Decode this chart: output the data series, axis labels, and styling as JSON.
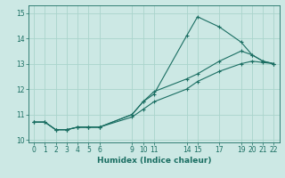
{
  "xlabel": "Humidex (Indice chaleur)",
  "bg_color": "#cce8e4",
  "grid_color": "#aad4cc",
  "line_color": "#1a6e62",
  "xlim": [
    -0.5,
    22.5
  ],
  "ylim": [
    9.9,
    15.3
  ],
  "xticks": [
    0,
    1,
    2,
    3,
    4,
    5,
    6,
    9,
    10,
    11,
    14,
    15,
    17,
    19,
    20,
    21,
    22
  ],
  "yticks": [
    10,
    11,
    12,
    13,
    14,
    15
  ],
  "line1_x": [
    0,
    1,
    2,
    3,
    4,
    5,
    6,
    9,
    10,
    11,
    14,
    15,
    17,
    19,
    20,
    21,
    22
  ],
  "line1_y": [
    10.7,
    10.7,
    10.4,
    10.4,
    10.5,
    10.5,
    10.5,
    11.0,
    11.5,
    11.8,
    14.1,
    14.85,
    14.45,
    13.85,
    13.35,
    13.1,
    13.0
  ],
  "line2_x": [
    0,
    1,
    2,
    3,
    4,
    5,
    6,
    9,
    10,
    11,
    14,
    15,
    17,
    19,
    20,
    21,
    22
  ],
  "line2_y": [
    10.7,
    10.7,
    10.4,
    10.4,
    10.5,
    10.5,
    10.5,
    11.0,
    11.5,
    11.9,
    12.4,
    12.6,
    13.1,
    13.5,
    13.35,
    13.1,
    13.0
  ],
  "line3_x": [
    0,
    1,
    2,
    3,
    4,
    5,
    6,
    9,
    10,
    11,
    14,
    15,
    17,
    19,
    20,
    21,
    22
  ],
  "line3_y": [
    10.7,
    10.7,
    10.4,
    10.4,
    10.5,
    10.5,
    10.5,
    10.9,
    11.2,
    11.5,
    12.0,
    12.3,
    12.7,
    13.0,
    13.1,
    13.05,
    13.0
  ],
  "xlabel_fontsize": 6.5,
  "tick_fontsize": 5.5
}
